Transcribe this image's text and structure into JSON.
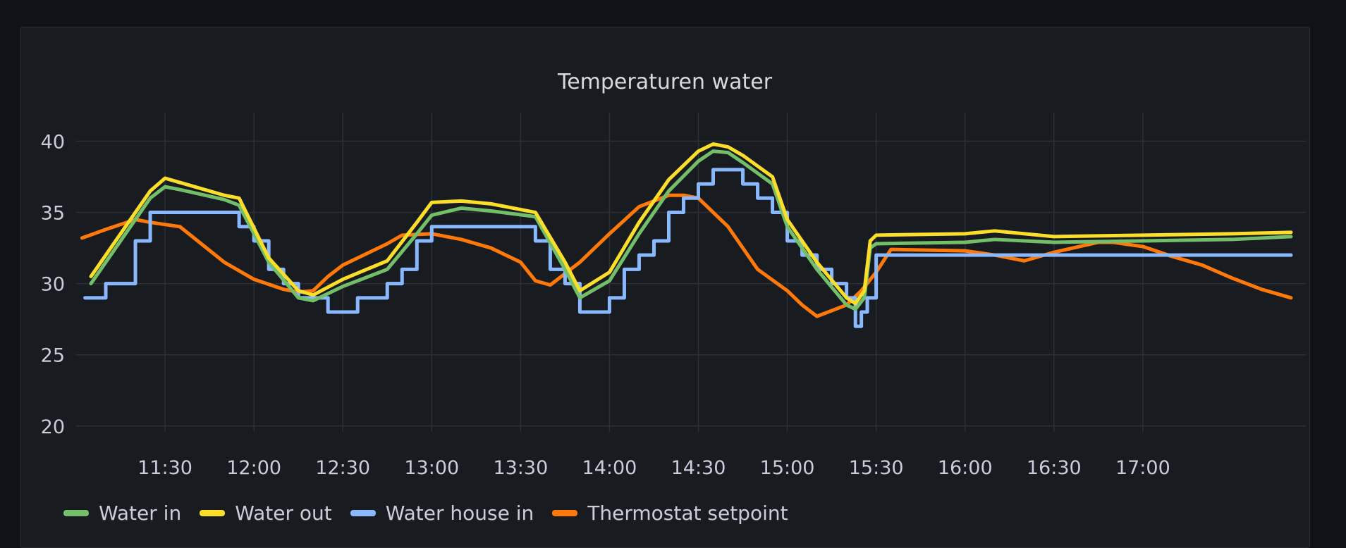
{
  "panel": {
    "title": "Temperaturen water"
  },
  "chart_data": {
    "type": "line",
    "title": "Temperaturen water",
    "xlabel": "",
    "ylabel": "",
    "x_range": [
      "11:00",
      "17:55"
    ],
    "ylim": [
      19,
      42
    ],
    "yticks": [
      20,
      25,
      30,
      35,
      40
    ],
    "xticks": [
      "11:30",
      "12:00",
      "12:30",
      "13:00",
      "13:30",
      "14:00",
      "14:30",
      "15:00",
      "15:30",
      "16:00",
      "16:30",
      "17:00"
    ],
    "grid": true,
    "legend": "bottom-left",
    "series": [
      {
        "name": "Water in",
        "color": "#73bf69",
        "x": [
          "11:05",
          "11:15",
          "11:25",
          "11:30",
          "11:35",
          "11:50",
          "11:55",
          "12:05",
          "12:15",
          "12:20",
          "12:30",
          "12:45",
          "12:55",
          "13:00",
          "13:10",
          "13:20",
          "13:35",
          "13:45",
          "13:50",
          "14:00",
          "14:10",
          "14:20",
          "14:30",
          "14:35",
          "14:40",
          "14:45",
          "14:55",
          "15:00",
          "15:10",
          "15:20",
          "15:23",
          "15:26",
          "15:28",
          "15:30",
          "16:00",
          "16:10",
          "16:30",
          "17:00",
          "17:30",
          "17:50"
        ],
        "y": [
          30.0,
          33.0,
          36.0,
          36.8,
          36.6,
          35.9,
          35.5,
          31.5,
          29.0,
          28.8,
          29.8,
          31.0,
          33.5,
          34.8,
          35.3,
          35.1,
          34.7,
          31.0,
          29.0,
          30.2,
          33.5,
          36.5,
          38.6,
          39.3,
          39.2,
          38.5,
          37.0,
          34.0,
          31.0,
          28.5,
          28.2,
          29.0,
          32.5,
          32.8,
          32.9,
          33.1,
          32.9,
          33.0,
          33.1,
          33.3
        ]
      },
      {
        "name": "Water out",
        "color": "#fade2a",
        "x": [
          "11:05",
          "11:15",
          "11:25",
          "11:30",
          "11:35",
          "11:50",
          "11:55",
          "12:05",
          "12:15",
          "12:20",
          "12:30",
          "12:45",
          "12:55",
          "13:00",
          "13:10",
          "13:20",
          "13:35",
          "13:45",
          "13:50",
          "14:00",
          "14:10",
          "14:20",
          "14:30",
          "14:35",
          "14:40",
          "14:45",
          "14:55",
          "15:00",
          "15:10",
          "15:20",
          "15:23",
          "15:26",
          "15:28",
          "15:30",
          "16:00",
          "16:10",
          "16:30",
          "17:00",
          "17:30",
          "17:50"
        ],
        "y": [
          30.5,
          33.5,
          36.5,
          37.4,
          37.1,
          36.2,
          36.0,
          31.8,
          29.5,
          29.2,
          30.3,
          31.6,
          34.3,
          35.7,
          35.8,
          35.6,
          35.0,
          31.5,
          29.5,
          30.8,
          34.3,
          37.3,
          39.3,
          39.8,
          39.6,
          39.0,
          37.5,
          34.5,
          31.5,
          29.0,
          28.6,
          29.5,
          33.0,
          33.4,
          33.5,
          33.7,
          33.3,
          33.4,
          33.5,
          33.6
        ]
      },
      {
        "name": "Water house in",
        "color": "#8ab8ff",
        "x": [
          "11:03",
          "11:10",
          "11:20",
          "11:25",
          "11:50",
          "11:55",
          "12:00",
          "12:05",
          "12:10",
          "12:15",
          "12:25",
          "12:35",
          "12:45",
          "12:50",
          "12:55",
          "13:00",
          "13:30",
          "13:35",
          "13:40",
          "13:45",
          "13:50",
          "14:00",
          "14:05",
          "14:10",
          "14:15",
          "14:20",
          "14:25",
          "14:30",
          "14:35",
          "14:40",
          "14:45",
          "14:50",
          "14:55",
          "15:00",
          "15:05",
          "15:10",
          "15:15",
          "15:20",
          "15:23",
          "15:25",
          "15:27",
          "15:30",
          "17:50"
        ],
        "y": [
          29,
          30,
          33,
          35,
          35,
          34,
          33,
          31,
          30,
          29,
          28,
          29,
          30,
          31,
          33,
          34,
          34,
          33,
          31,
          30,
          28,
          29,
          31,
          32,
          33,
          35,
          36,
          37,
          38,
          38,
          37,
          36,
          35,
          33,
          32,
          31,
          30,
          29,
          27,
          28,
          29,
          32,
          32
        ]
      },
      {
        "name": "Thermostat setpoint",
        "color": "#ff780a",
        "x": [
          "11:02",
          "11:10",
          "11:20",
          "11:25",
          "11:35",
          "11:50",
          "12:00",
          "12:10",
          "12:15",
          "12:20",
          "12:25",
          "12:30",
          "12:45",
          "12:50",
          "13:00",
          "13:10",
          "13:20",
          "13:30",
          "13:35",
          "13:40",
          "13:50",
          "14:00",
          "14:10",
          "14:20",
          "14:25",
          "14:30",
          "14:40",
          "14:50",
          "15:00",
          "15:05",
          "15:10",
          "15:20",
          "15:25",
          "15:30",
          "15:35",
          "16:00",
          "16:10",
          "16:20",
          "16:30",
          "16:45",
          "16:50",
          "17:00",
          "17:10",
          "17:20",
          "17:30",
          "17:40",
          "17:50"
        ],
        "y": [
          33.2,
          33.8,
          34.5,
          34.3,
          34.0,
          31.5,
          30.3,
          29.6,
          29.4,
          29.5,
          30.5,
          31.3,
          32.8,
          33.4,
          33.5,
          33.1,
          32.5,
          31.5,
          30.2,
          29.9,
          31.5,
          33.5,
          35.4,
          36.2,
          36.2,
          36.0,
          34.0,
          31.0,
          29.5,
          28.5,
          27.7,
          28.5,
          29.5,
          30.8,
          32.4,
          32.3,
          32.0,
          31.6,
          32.2,
          32.9,
          32.9,
          32.6,
          31.9,
          31.3,
          30.4,
          29.6,
          29.0
        ]
      }
    ]
  }
}
